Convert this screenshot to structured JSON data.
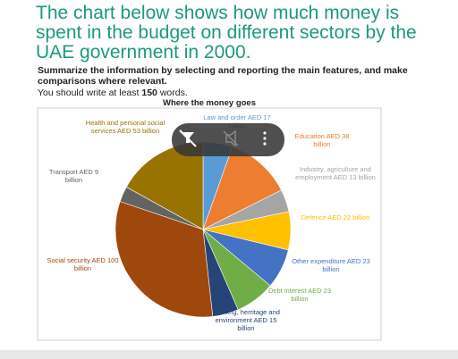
{
  "header": {
    "title": "The chart below shows how much money is spent in the budget on different sectors by the UAE government in 2000.",
    "instruction": "Summarize the information by selecting and reporting the main features, and make comparisons where relevant.",
    "word_count": {
      "before": "You should write at least",
      "number": "150",
      "after": "words."
    }
  },
  "chart_data": {
    "type": "pie",
    "title": "Where the money goes",
    "categories": [
      "Law and order",
      "Education",
      "Industry, agriculture and employment",
      "Defence",
      "Other expenditure",
      "Debt interest",
      "Housing, herritage and environment",
      "Social security",
      "Transport",
      "Health and personal social services"
    ],
    "values": [
      17,
      38,
      13,
      22,
      23,
      23,
      15,
      100,
      9,
      53
    ],
    "value_labels": [
      "AED 17 billion",
      "AED 38 billion",
      "AED 13 billion",
      "AED 22 billion",
      "AED 23 billion",
      "AED 23 billion",
      "AED 15 billion",
      "AED 100 billion",
      "AED 9 billion",
      "AED 53 billion"
    ],
    "colors": [
      "#5b9bd5",
      "#ed7d31",
      "#a5a5a5",
      "#ffc000",
      "#4472c4",
      "#70ad47",
      "#264478",
      "#9e480e",
      "#636363",
      "#997300"
    ]
  }
}
